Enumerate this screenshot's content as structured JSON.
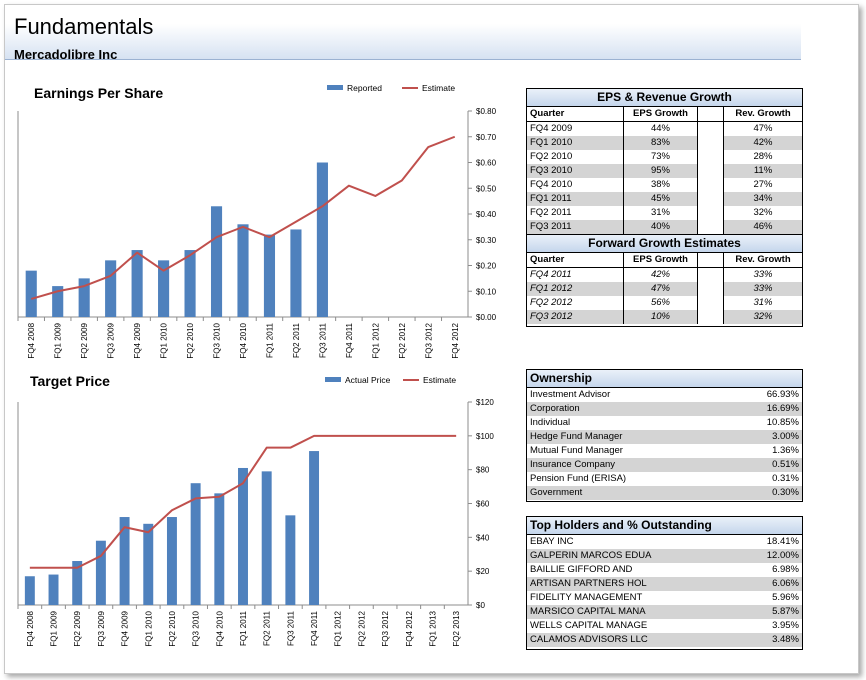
{
  "header": {
    "title": "Fundamentals",
    "subtitle": "Mercadolibre Inc"
  },
  "chart_data": [
    {
      "type": "bar",
      "title": "Earnings Per Share",
      "categories": [
        "FQ4 2008",
        "FQ1 2009",
        "FQ2 2009",
        "FQ3 2009",
        "FQ4 2009",
        "FQ1 2010",
        "FQ2 2010",
        "FQ3 2010",
        "FQ4 2010",
        "FQ1 2011",
        "FQ2 2011",
        "FQ3 2011",
        "FQ4 2011",
        "FQ1 2012",
        "FQ2 2012",
        "FQ3 2012",
        "FQ4 2012"
      ],
      "series": [
        {
          "name": "Reported",
          "type": "bar",
          "color": "#4f81bd",
          "values": [
            0.18,
            0.12,
            0.15,
            0.22,
            0.26,
            0.22,
            0.26,
            0.43,
            0.36,
            0.32,
            0.34,
            0.6,
            null,
            null,
            null,
            null,
            null
          ]
        },
        {
          "name": "Estimate",
          "type": "line",
          "color": "#c0504d",
          "values": [
            0.07,
            0.1,
            0.12,
            0.16,
            0.25,
            0.18,
            0.24,
            0.31,
            0.35,
            0.31,
            0.37,
            0.43,
            0.51,
            0.47,
            0.53,
            0.66,
            0.7
          ]
        }
      ],
      "ylim": [
        0,
        0.8
      ],
      "yticks": [
        "$0.00",
        "$0.10",
        "$0.20",
        "$0.30",
        "$0.40",
        "$0.50",
        "$0.60",
        "$0.70",
        "$0.80"
      ],
      "grid": false,
      "legend": "top-right"
    },
    {
      "type": "bar",
      "title": "Target Price",
      "categories": [
        "FQ4 2008",
        "FQ1 2009",
        "FQ2 2009",
        "FQ3 2009",
        "FQ4 2009",
        "FQ1 2010",
        "FQ2 2010",
        "FQ3 2010",
        "FQ4 2010",
        "FQ1 2011",
        "FQ2 2011",
        "FQ3 2011",
        "FQ4 2011",
        "FQ1 2012",
        "FQ2 2012",
        "FQ3 2012",
        "FQ4 2012",
        "FQ1 2013",
        "FQ2 2013"
      ],
      "series": [
        {
          "name": "Actual Price",
          "type": "bar",
          "color": "#4f81bd",
          "values": [
            17,
            18,
            26,
            38,
            52,
            48,
            52,
            72,
            66,
            81,
            79,
            53,
            91,
            null,
            null,
            null,
            null,
            null,
            null
          ]
        },
        {
          "name": "Estimate",
          "type": "line",
          "color": "#c0504d",
          "values": [
            22,
            22,
            22,
            29,
            46,
            43,
            56,
            63,
            64,
            72,
            93,
            93,
            100,
            100,
            100,
            100,
            100,
            100,
            100
          ]
        }
      ],
      "ylim": [
        0,
        120
      ],
      "yticks": [
        "$0",
        "$20",
        "$40",
        "$60",
        "$80",
        "$100",
        "$120"
      ],
      "grid": false,
      "legend": "top-right"
    }
  ],
  "eps_growth": {
    "title": "EPS & Revenue Growth",
    "headers": [
      "Quarter",
      "EPS Growth",
      "",
      "Rev. Growth"
    ],
    "rows": [
      [
        "FQ4 2009",
        "44%",
        "",
        "47%"
      ],
      [
        "FQ1 2010",
        "83%",
        "",
        "42%"
      ],
      [
        "FQ2 2010",
        "73%",
        "",
        "28%"
      ],
      [
        "FQ3 2010",
        "95%",
        "",
        "11%"
      ],
      [
        "FQ4 2010",
        "38%",
        "",
        "27%"
      ],
      [
        "FQ1 2011",
        "45%",
        "",
        "34%"
      ],
      [
        "FQ2 2011",
        "31%",
        "",
        "32%"
      ],
      [
        "FQ3 2011",
        "40%",
        "",
        "46%"
      ]
    ]
  },
  "forward_growth": {
    "title": "Forward Growth Estimates",
    "headers": [
      "Quarter",
      "EPS Growth",
      "",
      "Rev. Growth"
    ],
    "rows": [
      [
        "FQ4 2011",
        "42%",
        "",
        "33%"
      ],
      [
        "FQ1 2012",
        "47%",
        "",
        "33%"
      ],
      [
        "FQ2 2012",
        "56%",
        "",
        "31%"
      ],
      [
        "FQ3 2012",
        "10%",
        "",
        "32%"
      ]
    ]
  },
  "ownership": {
    "title": "Ownership",
    "rows": [
      [
        "Investment Advisor",
        "66.93%"
      ],
      [
        "Corporation",
        "16.69%"
      ],
      [
        "Individual",
        "10.85%"
      ],
      [
        "Hedge Fund Manager",
        "3.00%"
      ],
      [
        "Mutual Fund Manager",
        "1.36%"
      ],
      [
        "Insurance Company",
        "0.51%"
      ],
      [
        "Pension Fund (ERISA)",
        "0.31%"
      ],
      [
        "Government",
        "0.30%"
      ]
    ]
  },
  "top_holders": {
    "title": "Top Holders and % Outstanding",
    "rows": [
      [
        "EBAY INC",
        "18.41%"
      ],
      [
        "GALPERIN MARCOS EDUA",
        "12.00%"
      ],
      [
        "BAILLIE GIFFORD AND",
        "6.98%"
      ],
      [
        "ARTISAN PARTNERS HOL",
        "6.06%"
      ],
      [
        "FIDELITY MANAGEMENT",
        "5.96%"
      ],
      [
        "MARSICO CAPITAL MANA",
        "5.87%"
      ],
      [
        "WELLS CAPITAL MANAGE",
        "3.95%"
      ],
      [
        "CALAMOS ADVISORS LLC",
        "3.48%"
      ]
    ]
  }
}
